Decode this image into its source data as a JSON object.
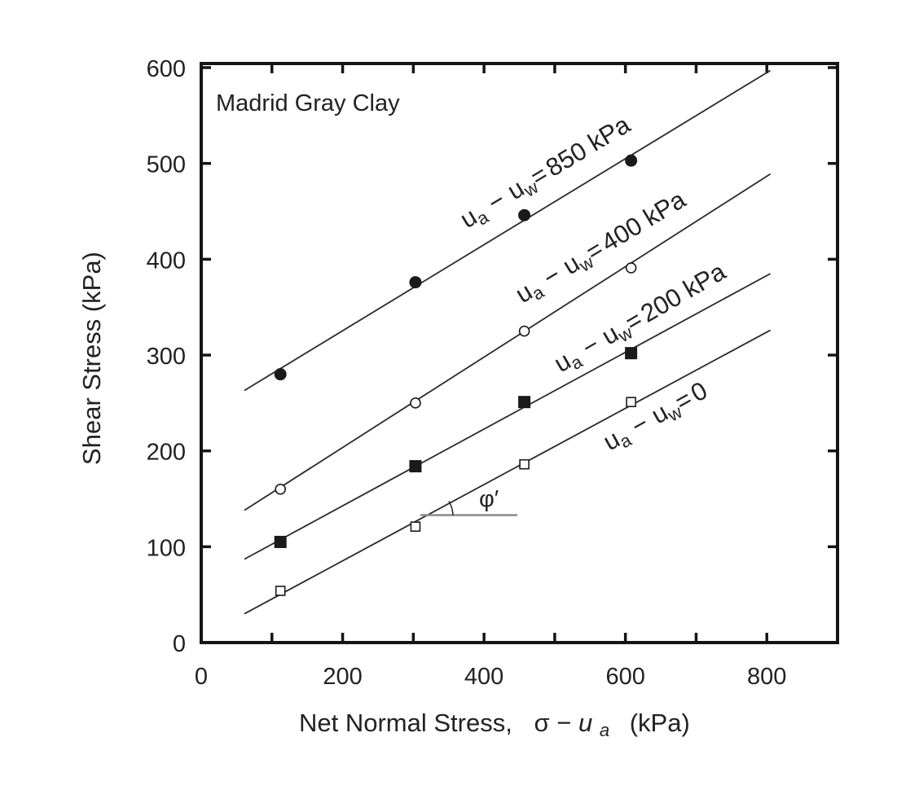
{
  "chart_data": {
    "type": "scatter",
    "title": "",
    "annotation": "Madrid Gray Clay",
    "xlabel": "Net Normal Stress,  σ − u_a  (kPa)",
    "xlabel_parts": {
      "prefix": "Net Normal Stress,",
      "sigma": "σ",
      "minus": "−",
      "u": "u",
      "u_sub": "a",
      "unit": "(kPa)"
    },
    "ylabel": "Shear Stress (kPa)",
    "xlim": [
      0,
      900
    ],
    "ylim": [
      0,
      600
    ],
    "x_ticks": [
      0,
      100,
      200,
      300,
      400,
      500,
      600,
      700,
      800,
      900
    ],
    "x_tick_labels": [
      "0",
      "200",
      "400",
      "600",
      "800"
    ],
    "x_tick_label_values": [
      0,
      200,
      400,
      600,
      800
    ],
    "y_ticks": [
      0,
      100,
      200,
      300,
      400,
      500,
      600
    ],
    "y_tick_labels": [
      "0",
      "100",
      "200",
      "300",
      "400",
      "500",
      "600"
    ],
    "grid": false,
    "legend": "inline labels along lines",
    "series": [
      {
        "name": "u_a − u_w = 850 kPa",
        "label_parts": {
          "u1": "u",
          "s1": "a",
          "minus": "−",
          "u2": "u",
          "s2": "w",
          "eq": "=",
          "value": "850 kPa"
        },
        "marker": "filled-circle",
        "x": [
          112,
          303,
          457,
          608
        ],
        "y": [
          280,
          376,
          446,
          503
        ],
        "fit_line": {
          "x": [
            61,
            805
          ],
          "y": [
            263,
            597
          ]
        }
      },
      {
        "name": "u_a − u_w = 400 kPa",
        "label_parts": {
          "u1": "u",
          "s1": "a",
          "minus": "−",
          "u2": "u",
          "s2": "w",
          "eq": "=",
          "value": "400 kPa"
        },
        "marker": "open-circle",
        "x": [
          112,
          303,
          457,
          608
        ],
        "y": [
          160,
          250,
          325,
          391
        ],
        "fit_line": {
          "x": [
            61,
            805
          ],
          "y": [
            138,
            489
          ]
        }
      },
      {
        "name": "u_a − u_w = 200 kPa",
        "label_parts": {
          "u1": "u",
          "s1": "a",
          "minus": "−",
          "u2": "u",
          "s2": "w",
          "eq": "=",
          "value": "200 kPa"
        },
        "marker": "filled-square",
        "x": [
          112,
          303,
          457,
          608
        ],
        "y": [
          105,
          184,
          251,
          302
        ],
        "fit_line": {
          "x": [
            61,
            805
          ],
          "y": [
            87,
            385
          ]
        }
      },
      {
        "name": "u_a − u_w = 0",
        "label_parts": {
          "u1": "u",
          "s1": "a",
          "minus": "−",
          "u2": "u",
          "s2": "w",
          "eq": "=",
          "value": "0"
        },
        "marker": "open-square",
        "x": [
          112,
          303,
          457,
          608
        ],
        "y": [
          54,
          121,
          186,
          251
        ],
        "fit_line": {
          "x": [
            61,
            805
          ],
          "y": [
            30,
            326
          ]
        }
      }
    ],
    "angle_annotation": {
      "symbol": "φ′",
      "ref_line_x": [
        310,
        447
      ],
      "ref_line_y": 133
    }
  },
  "colors": {
    "axis": "#151515",
    "line": "#2a2a2a",
    "marker": "#1a1a1a",
    "ref_line": "#8a8a8a",
    "background": "#ffffff"
  }
}
